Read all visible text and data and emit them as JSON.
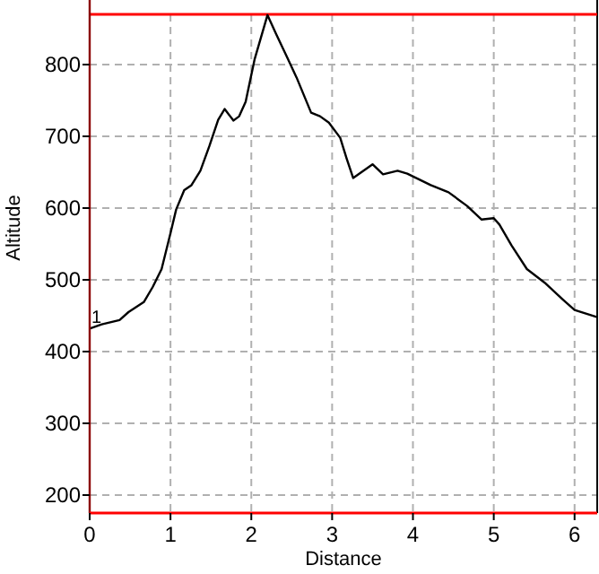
{
  "chart_data": {
    "type": "line",
    "xlabel": "Distance",
    "ylabel": "Altitude",
    "x": [
      0,
      0.15,
      0.37,
      0.48,
      0.67,
      0.78,
      0.89,
      1.0,
      1.07,
      1.17,
      1.26,
      1.37,
      1.48,
      1.59,
      1.67,
      1.78,
      1.85,
      1.93,
      2.04,
      2.2,
      2.31,
      2.44,
      2.56,
      2.74,
      2.85,
      2.96,
      3.1,
      3.18,
      3.26,
      3.5,
      3.63,
      3.81,
      3.93,
      4.22,
      4.44,
      4.67,
      4.85,
      5.0,
      5.07,
      5.22,
      5.41,
      5.63,
      5.85,
      6.0,
      6.28
    ],
    "series": [
      {
        "color": "#000000",
        "values": [
          432,
          438,
          444,
          455,
          469,
          490,
          515,
          565,
          598,
          625,
          632,
          652,
          686,
          723,
          738,
          722,
          728,
          748,
          807,
          869,
          842,
          811,
          782,
          733,
          728,
          719,
          698,
          669,
          642,
          661,
          647,
          652,
          648,
          632,
          622,
          603,
          584,
          586,
          577,
          548,
          515,
          496,
          473,
          458,
          448
        ]
      }
    ],
    "xlim": [
      0,
      6.28
    ],
    "ylim": [
      175,
      870
    ],
    "xticks": [
      0,
      1,
      2,
      3,
      4,
      5,
      6
    ],
    "yticks": [
      200,
      300,
      400,
      500,
      600,
      700,
      800
    ],
    "grid": true,
    "marker": "none",
    "line_style": "solid",
    "ref_lines": [
      {
        "axis": "y",
        "value": 870,
        "color": "#ff0000"
      }
    ],
    "annotations": [
      {
        "text": "1",
        "x": 0,
        "y": 440
      }
    ]
  }
}
